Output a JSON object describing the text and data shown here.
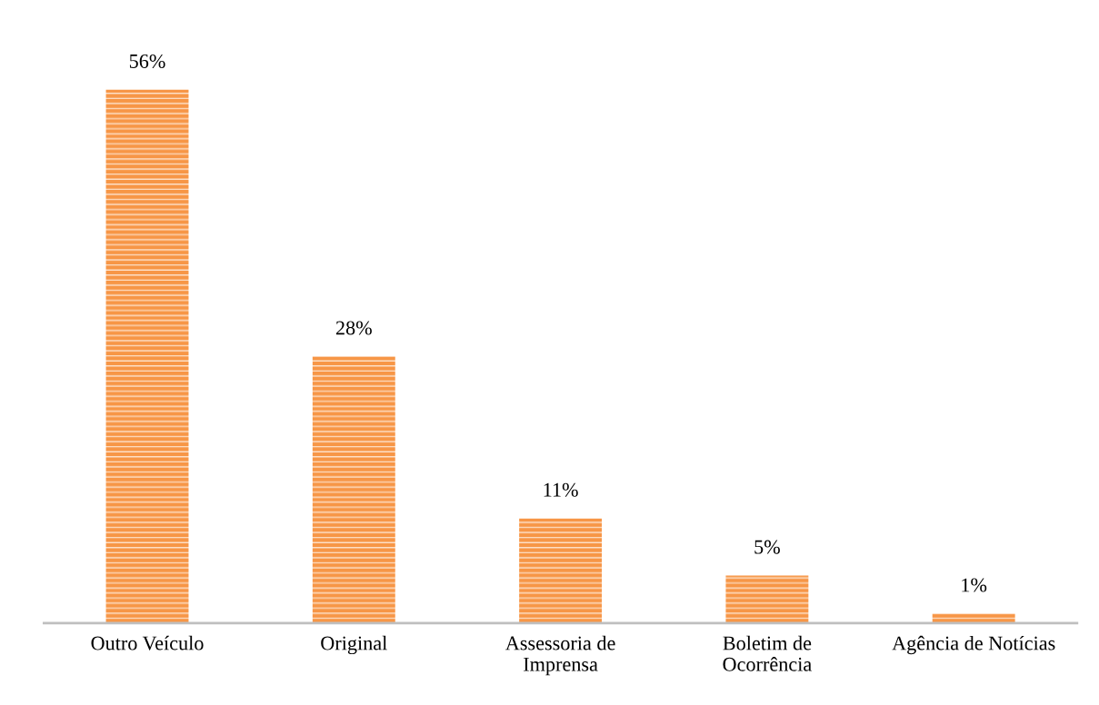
{
  "chart_data": {
    "type": "bar",
    "categories": [
      "Outro Veículo",
      "Original",
      "Assessoria de\nImprensa",
      "Boletim de\nOcorrência",
      "Agência de Notícias"
    ],
    "values": [
      56,
      28,
      11,
      5,
      1
    ],
    "value_labels": [
      "56%",
      "28%",
      "11%",
      "5%",
      "1%"
    ],
    "color": "#f79646",
    "grid": false,
    "legend": false
  }
}
